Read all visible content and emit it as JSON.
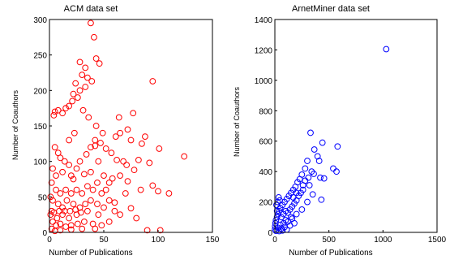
{
  "chart_data": [
    {
      "type": "scatter",
      "title": "ACM data set",
      "xlabel": "Number of Publications",
      "ylabel": "Number of Coauthors",
      "xlim": [
        0,
        150
      ],
      "ylim": [
        0,
        300
      ],
      "xticks": [
        0,
        50,
        100,
        150
      ],
      "yticks": [
        0,
        50,
        100,
        150,
        200,
        250,
        300
      ],
      "grid": false,
      "marker": "open-circle",
      "color": "#ff0000",
      "points": [
        [
          38,
          295
        ],
        [
          41,
          275
        ],
        [
          43,
          245
        ],
        [
          46,
          238
        ],
        [
          28,
          240
        ],
        [
          33,
          232
        ],
        [
          30,
          222
        ],
        [
          35,
          218
        ],
        [
          39,
          213
        ],
        [
          33,
          205
        ],
        [
          28,
          200
        ],
        [
          24,
          210
        ],
        [
          22,
          195
        ],
        [
          26,
          190
        ],
        [
          21,
          185
        ],
        [
          18,
          178
        ],
        [
          15,
          175
        ],
        [
          12,
          168
        ],
        [
          8,
          172
        ],
        [
          5,
          170
        ],
        [
          4,
          165
        ],
        [
          95,
          213
        ],
        [
          77,
          168
        ],
        [
          61,
          135
        ],
        [
          65,
          140
        ],
        [
          72,
          145
        ],
        [
          75,
          130
        ],
        [
          88,
          135
        ],
        [
          85,
          125
        ],
        [
          101,
          118
        ],
        [
          124,
          107
        ],
        [
          47,
          126
        ],
        [
          42,
          122
        ],
        [
          52,
          118
        ],
        [
          57,
          112
        ],
        [
          62,
          102
        ],
        [
          68,
          100
        ],
        [
          71,
          95
        ],
        [
          82,
          102
        ],
        [
          78,
          88
        ],
        [
          92,
          98
        ],
        [
          65,
          80
        ],
        [
          58,
          76
        ],
        [
          72,
          72
        ],
        [
          84,
          60
        ],
        [
          95,
          66
        ],
        [
          100,
          58
        ],
        [
          70,
          55
        ],
        [
          60,
          42
        ],
        [
          75,
          34
        ],
        [
          110,
          55
        ],
        [
          5,
          120
        ],
        [
          8,
          112
        ],
        [
          10,
          105
        ],
        [
          14,
          100
        ],
        [
          18,
          95
        ],
        [
          12,
          85
        ],
        [
          20,
          80
        ],
        [
          25,
          90
        ],
        [
          22,
          75
        ],
        [
          28,
          100
        ],
        [
          34,
          110
        ],
        [
          38,
          120
        ],
        [
          42,
          130
        ],
        [
          45,
          100
        ],
        [
          38,
          85
        ],
        [
          32,
          82
        ],
        [
          44,
          70
        ],
        [
          50,
          80
        ],
        [
          55,
          70
        ],
        [
          52,
          60
        ],
        [
          48,
          55
        ],
        [
          40,
          60
        ],
        [
          35,
          65
        ],
        [
          30,
          55
        ],
        [
          25,
          60
        ],
        [
          20,
          55
        ],
        [
          15,
          60
        ],
        [
          10,
          55
        ],
        [
          6,
          60
        ],
        [
          3,
          45
        ],
        [
          8,
          40
        ],
        [
          12,
          35
        ],
        [
          16,
          45
        ],
        [
          22,
          40
        ],
        [
          28,
          35
        ],
        [
          33,
          40
        ],
        [
          38,
          45
        ],
        [
          44,
          40
        ],
        [
          50,
          35
        ],
        [
          55,
          45
        ],
        [
          60,
          30
        ],
        [
          65,
          25
        ],
        [
          45,
          25
        ],
        [
          35,
          30
        ],
        [
          25,
          25
        ],
        [
          18,
          20
        ],
        [
          12,
          25
        ],
        [
          7,
          20
        ],
        [
          3,
          15
        ],
        [
          6,
          10
        ],
        [
          10,
          12
        ],
        [
          15,
          8
        ],
        [
          20,
          10
        ],
        [
          26,
          12
        ],
        [
          32,
          15
        ],
        [
          40,
          12
        ],
        [
          48,
          10
        ],
        [
          55,
          15
        ],
        [
          42,
          5
        ],
        [
          30,
          5
        ],
        [
          20,
          4
        ],
        [
          10,
          3
        ],
        [
          5,
          2
        ],
        [
          2,
          5
        ],
        [
          1,
          25
        ],
        [
          2,
          30
        ],
        [
          4,
          28
        ],
        [
          9,
          30
        ],
        [
          14,
          30
        ],
        [
          19,
          30
        ],
        [
          24,
          32
        ],
        [
          29,
          28
        ],
        [
          90,
          3
        ],
        [
          102,
          3
        ],
        [
          80,
          20
        ],
        [
          43,
          150
        ],
        [
          49,
          140
        ],
        [
          36,
          162
        ],
        [
          31,
          172
        ],
        [
          64,
          162
        ],
        [
          18,
          130
        ],
        [
          23,
          140
        ],
        [
          2,
          70
        ],
        [
          3,
          90
        ],
        [
          6,
          80
        ],
        [
          1,
          50
        ]
      ]
    },
    {
      "type": "scatter",
      "title": "ArnetMiner data set",
      "xlabel": "Number of Publications",
      "ylabel": "Number of Coauthors",
      "xlim": [
        0,
        1500
      ],
      "ylim": [
        0,
        1400
      ],
      "xticks": [
        0,
        500,
        1000,
        1500
      ],
      "yticks": [
        0,
        200,
        400,
        600,
        800,
        1000,
        1200,
        1400
      ],
      "grid": false,
      "marker": "open-circle",
      "color": "#0000ff",
      "points": [
        [
          1030,
          1205
        ],
        [
          330,
          655
        ],
        [
          580,
          565
        ],
        [
          440,
          590
        ],
        [
          365,
          545
        ],
        [
          395,
          500
        ],
        [
          410,
          470
        ],
        [
          300,
          470
        ],
        [
          280,
          420
        ],
        [
          360,
          385
        ],
        [
          540,
          420
        ],
        [
          570,
          400
        ],
        [
          420,
          360
        ],
        [
          455,
          355
        ],
        [
          430,
          215
        ],
        [
          250,
          380
        ],
        [
          230,
          350
        ],
        [
          210,
          330
        ],
        [
          190,
          300
        ],
        [
          170,
          280
        ],
        [
          320,
          310
        ],
        [
          150,
          260
        ],
        [
          130,
          240
        ],
        [
          110,
          220
        ],
        [
          90,
          200
        ],
        [
          70,
          180
        ],
        [
          50,
          160
        ],
        [
          40,
          140
        ],
        [
          30,
          120
        ],
        [
          20,
          100
        ],
        [
          10,
          80
        ],
        [
          5,
          60
        ],
        [
          2,
          40
        ],
        [
          1,
          20
        ],
        [
          60,
          100
        ],
        [
          80,
          120
        ],
        [
          100,
          140
        ],
        [
          120,
          130
        ],
        [
          140,
          150
        ],
        [
          160,
          170
        ],
        [
          180,
          190
        ],
        [
          200,
          210
        ],
        [
          220,
          240
        ],
        [
          240,
          260
        ],
        [
          260,
          280
        ],
        [
          100,
          80
        ],
        [
          150,
          100
        ],
        [
          200,
          120
        ],
        [
          250,
          150
        ],
        [
          300,
          200
        ],
        [
          350,
          250
        ],
        [
          50,
          50
        ],
        [
          80,
          60
        ],
        [
          120,
          70
        ],
        [
          160,
          90
        ],
        [
          30,
          30
        ],
        [
          60,
          25
        ],
        [
          90,
          35
        ],
        [
          140,
          45
        ],
        [
          180,
          60
        ],
        [
          10,
          10
        ],
        [
          40,
          8
        ],
        [
          70,
          12
        ],
        [
          110,
          18
        ],
        [
          20,
          140
        ],
        [
          15,
          180
        ],
        [
          25,
          200
        ],
        [
          35,
          230
        ],
        [
          45,
          210
        ],
        [
          260,
          310
        ],
        [
          280,
          340
        ],
        [
          310,
          360
        ],
        [
          340,
          400
        ],
        [
          200,
          260
        ],
        [
          170,
          230
        ]
      ]
    }
  ]
}
